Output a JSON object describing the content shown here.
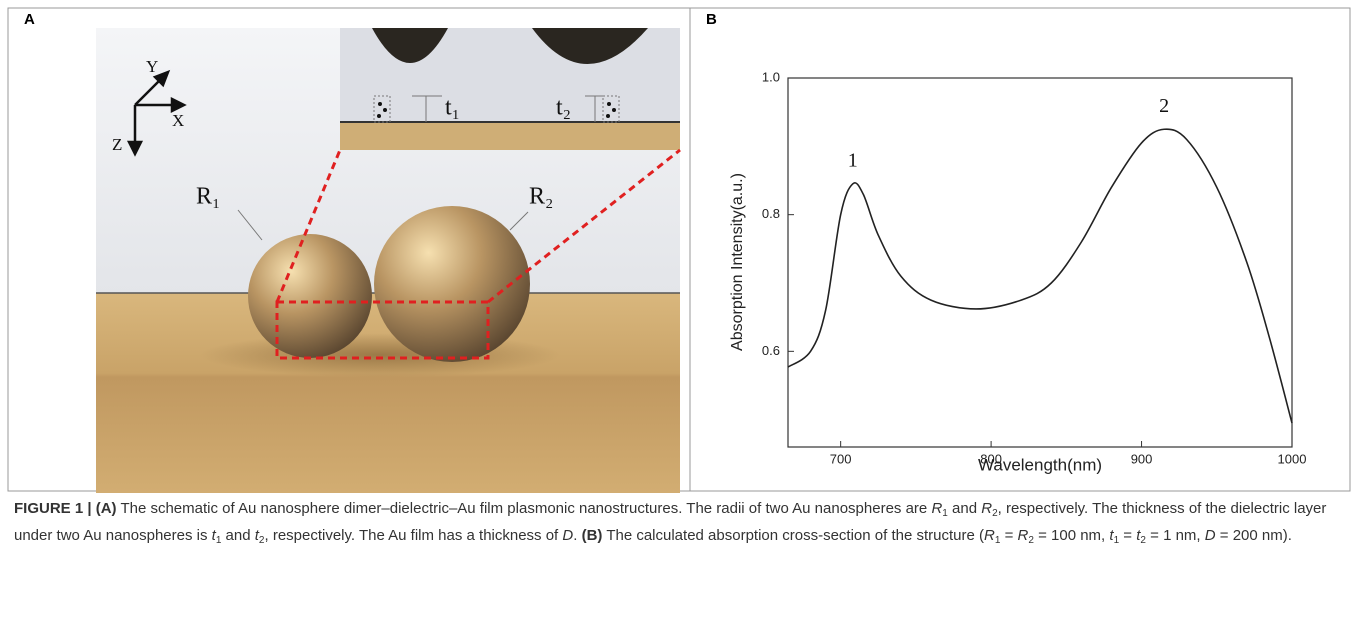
{
  "figure": {
    "panel_a": {
      "letter": "A",
      "axes": {
        "y": "Y",
        "x": "X",
        "z": "Z"
      },
      "labels": {
        "r1": "R₁",
        "r2": "R₂",
        "t1": "t₁",
        "t2": "t₂"
      }
    },
    "panel_b": {
      "letter": "B"
    },
    "caption": {
      "runs": [
        {
          "text": "FIGURE 1 | (A)",
          "style": "b"
        },
        {
          "text": " The schematic of Au nanosphere dimer–dielectric–Au film plasmonic nanostructures. The radii of two Au nanospheres are "
        },
        {
          "text": "R",
          "style": "i"
        },
        {
          "text": "1",
          "style": "sub"
        },
        {
          "text": " and "
        },
        {
          "text": "R",
          "style": "i"
        },
        {
          "text": "2",
          "style": "sub"
        },
        {
          "text": ", respectively. The thickness of the dielectric layer under two Au nanospheres is "
        },
        {
          "text": "t",
          "style": "i"
        },
        {
          "text": "1",
          "style": "sub"
        },
        {
          "text": " and "
        },
        {
          "text": "t",
          "style": "i"
        },
        {
          "text": "2",
          "style": "sub"
        },
        {
          "text": ", respectively. The Au film has a thickness of "
        },
        {
          "text": "D",
          "style": "i"
        },
        {
          "text": ". "
        },
        {
          "text": "(B)",
          "style": "b"
        },
        {
          "text": " The calculated absorption cross-section of the structure ("
        },
        {
          "text": "R",
          "style": "i"
        },
        {
          "text": "1",
          "style": "sub"
        },
        {
          "text": " = "
        },
        {
          "text": "R",
          "style": "i"
        },
        {
          "text": "2",
          "style": "sub"
        },
        {
          "text": " = 100 nm, "
        },
        {
          "text": "t",
          "style": "i"
        },
        {
          "text": "1",
          "style": "sub"
        },
        {
          "text": " = "
        },
        {
          "text": "t",
          "style": "i"
        },
        {
          "text": "2",
          "style": "sub"
        },
        {
          "text": " = 1 nm, "
        },
        {
          "text": "D",
          "style": "i"
        },
        {
          "text": " = 200 nm)."
        }
      ]
    }
  },
  "chart_data": {
    "type": "line",
    "x_label": "Wavelength(nm)",
    "y_label": "Absorption Intensity(a.u.)",
    "x": [
      665,
      680,
      690,
      700,
      708,
      715,
      725,
      740,
      760,
      790,
      820,
      840,
      860,
      880,
      900,
      915,
      930,
      950,
      970,
      985,
      1000
    ],
    "series": [
      {
        "color": "#222222",
        "values": [
          0.577,
          0.6,
          0.66,
          0.8,
          0.845,
          0.83,
          0.77,
          0.71,
          0.675,
          0.662,
          0.675,
          0.7,
          0.76,
          0.84,
          0.905,
          0.925,
          0.91,
          0.84,
          0.73,
          0.62,
          0.495
        ]
      }
    ],
    "peak_labels": [
      "1",
      "2"
    ],
    "xlim": [
      665,
      1000
    ],
    "ylim": [
      0.46,
      1.0
    ],
    "xticks": [
      700,
      800,
      900,
      1000
    ],
    "yticks": [
      0.6,
      0.8,
      {
        "value": 1,
        "label": "1.0"
      }
    ]
  }
}
